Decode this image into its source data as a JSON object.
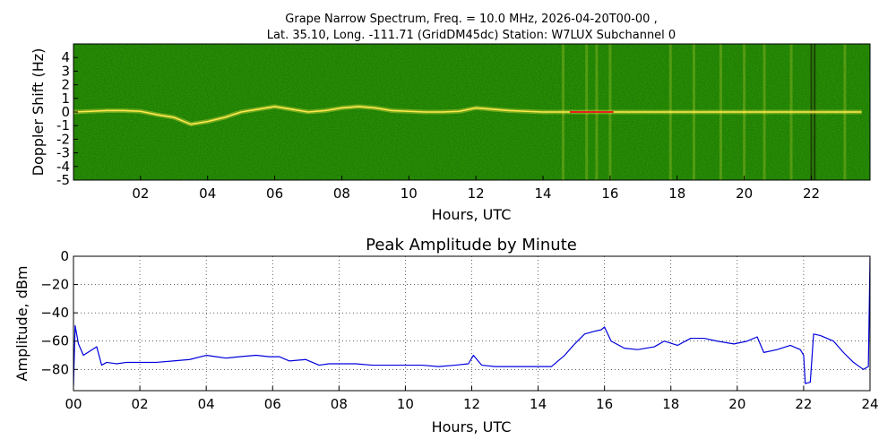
{
  "figure": {
    "title_line1": "Grape Narrow Spectrum, Freq. = 10.0 MHz, 2026-04-20T00-00 ,",
    "title_line2": "Lat.  35.10, Long. -111.71 (GridDM45dc) Station: W7LUX Subchannel 0"
  },
  "chart_data": [
    {
      "type": "heatmap",
      "title": "",
      "xlabel": "Hours, UTC",
      "ylabel": "Doppler Shift (Hz)",
      "xlim": [
        0,
        23.75
      ],
      "ylim": [
        -5,
        5
      ],
      "x_ticks": [
        "02",
        "04",
        "06",
        "08",
        "10",
        "12",
        "14",
        "16",
        "18",
        "20",
        "22"
      ],
      "y_ticks": [
        "4",
        "3",
        "2",
        "1",
        "0",
        "-1",
        "-2",
        "-3",
        "-4",
        "-5"
      ],
      "colors": {
        "background": "#1e7d06",
        "trace": "#ffe94a",
        "peak": "#e8211c"
      },
      "trace": {
        "x": [
          0.0,
          0.5,
          1.0,
          1.5,
          2.0,
          2.5,
          3.0,
          3.5,
          4.0,
          4.5,
          5.0,
          5.5,
          6.0,
          6.5,
          7.0,
          7.5,
          8.0,
          8.5,
          9.0,
          9.5,
          10.0,
          10.5,
          11.0,
          11.5,
          12.0,
          12.5,
          13.0,
          13.5,
          14.0,
          14.5,
          15.0,
          15.5,
          16.0,
          16.5,
          17.0,
          17.5,
          18.0,
          18.5,
          19.0,
          19.5,
          20.0,
          20.5,
          21.0,
          21.5,
          22.0,
          22.5,
          23.0,
          23.5
        ],
        "y": [
          0.0,
          0.05,
          0.1,
          0.1,
          0.05,
          -0.2,
          -0.4,
          -0.9,
          -0.7,
          -0.4,
          0.0,
          0.2,
          0.4,
          0.2,
          0.0,
          0.1,
          0.3,
          0.4,
          0.3,
          0.1,
          0.05,
          0.0,
          0.0,
          0.05,
          0.3,
          0.2,
          0.1,
          0.05,
          0.0,
          0.0,
          0.0,
          0.0,
          0.0,
          0.0,
          0.0,
          0.0,
          0.0,
          0.0,
          0.0,
          0.0,
          0.0,
          0.0,
          0.0,
          0.0,
          0.0,
          0.0,
          0.0,
          0.0
        ]
      },
      "peak_segment": {
        "x_start": 14.8,
        "x_end": 16.1,
        "y": 0.0
      },
      "vertical_bands": [
        14.6,
        15.3,
        15.6,
        16.0,
        17.8,
        18.5,
        19.3,
        20.0,
        20.6,
        21.4,
        22.0,
        22.1,
        23.0
      ],
      "dark_bands": [
        22.0,
        22.1
      ]
    },
    {
      "type": "line",
      "title": "Peak Amplitude by Minute",
      "xlabel": "Hours, UTC",
      "ylabel": "Amplitude, dBm",
      "xlim": [
        0,
        24
      ],
      "ylim": [
        -95,
        0
      ],
      "grid": true,
      "x_ticks": [
        "00",
        "02",
        "04",
        "06",
        "08",
        "10",
        "12",
        "14",
        "16",
        "18",
        "20",
        "22",
        "24"
      ],
      "y_ticks": [
        "0",
        "−20",
        "−40",
        "−60",
        "−80"
      ],
      "line_color": "#0000dd",
      "x": [
        0.0,
        0.05,
        0.15,
        0.3,
        0.5,
        0.7,
        0.85,
        1.0,
        1.3,
        1.6,
        2.0,
        2.5,
        3.0,
        3.5,
        4.0,
        4.3,
        4.6,
        5.0,
        5.5,
        5.9,
        6.2,
        6.5,
        7.0,
        7.4,
        7.7,
        8.0,
        8.5,
        9.0,
        9.5,
        10.0,
        10.5,
        11.0,
        11.5,
        11.9,
        12.05,
        12.3,
        12.7,
        13.0,
        13.5,
        14.0,
        14.4,
        14.8,
        15.1,
        15.4,
        15.7,
        15.9,
        16.0,
        16.2,
        16.6,
        17.0,
        17.5,
        17.8,
        18.2,
        18.6,
        19.0,
        19.4,
        19.9,
        20.3,
        20.6,
        20.8,
        21.2,
        21.6,
        21.9,
        22.0,
        22.05,
        22.2,
        22.3,
        22.5,
        22.9,
        23.2,
        23.5,
        23.8,
        23.95,
        24.0
      ],
      "y": [
        -92,
        -49,
        -62,
        -70,
        -67,
        -64,
        -77,
        -75,
        -76,
        -75,
        -75,
        -75,
        -74,
        -73,
        -70,
        -71,
        -72,
        -71,
        -70,
        -71,
        -71,
        -74,
        -73,
        -77,
        -76,
        -76,
        -76,
        -77,
        -77,
        -77,
        -77,
        -78,
        -77,
        -76,
        -70,
        -77,
        -78,
        -78,
        -78,
        -78,
        -78,
        -70,
        -62,
        -55,
        -53,
        -52,
        -50,
        -60,
        -65,
        -66,
        -64,
        -60,
        -63,
        -58,
        -58,
        -60,
        -62,
        -60,
        -57,
        -68,
        -66,
        -63,
        -66,
        -70,
        -90,
        -89,
        -55,
        -56,
        -60,
        -68,
        -75,
        -80,
        -78,
        -1
      ]
    }
  ]
}
